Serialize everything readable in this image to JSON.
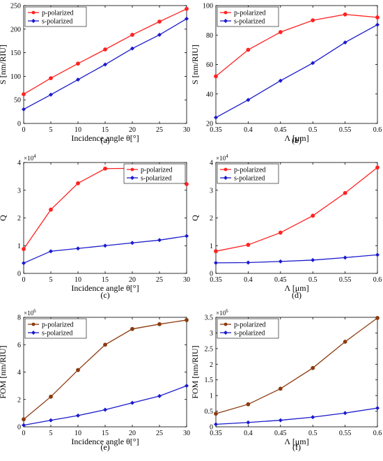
{
  "chart_data": [
    {
      "type": "line",
      "panel_label": "(a)",
      "x": [
        0,
        5,
        10,
        15,
        20,
        25,
        30
      ],
      "xlim": [
        0,
        30
      ],
      "xticks": [
        "0",
        "5",
        "10",
        "15",
        "20",
        "25",
        "30"
      ],
      "ylim": [
        0,
        250
      ],
      "yticks": [
        "0",
        "50",
        "100",
        "150",
        "200",
        "250"
      ],
      "multiplier": "",
      "xlabel": "Incidence angle θ[°]",
      "ylabel": "S [nm/RIU]",
      "legend_position": "top-left",
      "series": [
        {
          "name": "p-polarized",
          "color": "#ff2222",
          "marker": "circle",
          "values": [
            62,
            96,
            127,
            157,
            188,
            216,
            243
          ]
        },
        {
          "name": "s-polarized",
          "color": "#1a1acc",
          "marker": "diamond",
          "values": [
            30,
            61,
            93,
            125,
            159,
            188,
            222
          ]
        }
      ]
    },
    {
      "type": "line",
      "panel_label": "(b)",
      "x": [
        0.35,
        0.4,
        0.45,
        0.5,
        0.55,
        0.6
      ],
      "xlim": [
        0.35,
        0.6
      ],
      "xticks": [
        "0.35",
        "0.4",
        "0.45",
        "0.5",
        "0.55",
        "0.6"
      ],
      "ylim": [
        20,
        100
      ],
      "yticks": [
        "20",
        "40",
        "60",
        "80",
        "100"
      ],
      "multiplier": "",
      "xlabel": "Λ [μm]",
      "ylabel": "S [nm/RIU]",
      "legend_position": "top-left",
      "series": [
        {
          "name": "p-polarized",
          "color": "#ff2222",
          "marker": "circle",
          "values": [
            52,
            70,
            82,
            90,
            94,
            92
          ]
        },
        {
          "name": "s-polarized",
          "color": "#1a1acc",
          "marker": "diamond",
          "values": [
            24,
            36,
            49,
            61,
            75,
            87
          ]
        }
      ]
    },
    {
      "type": "line",
      "panel_label": "(c)",
      "x": [
        0,
        5,
        10,
        15,
        20,
        25,
        30
      ],
      "xlim": [
        0,
        30
      ],
      "xticks": [
        "0",
        "5",
        "10",
        "15",
        "20",
        "25",
        "30"
      ],
      "ylim": [
        0,
        4
      ],
      "yticks": [
        "0",
        "1",
        "2",
        "3",
        "4"
      ],
      "multiplier": "×10",
      "multiplier_exp": "4",
      "xlabel": "Incidence angle θ[°]",
      "ylabel": "Q",
      "legend_position": "top-right",
      "series": [
        {
          "name": "p-polarized",
          "color": "#ff2222",
          "marker": "circle",
          "values": [
            0.88,
            2.3,
            3.25,
            3.78,
            3.79,
            3.48,
            3.22
          ]
        },
        {
          "name": "s-polarized",
          "color": "#1a1acc",
          "marker": "diamond",
          "values": [
            0.37,
            0.8,
            0.9,
            1.0,
            1.1,
            1.2,
            1.35
          ]
        }
      ]
    },
    {
      "type": "line",
      "panel_label": "(d)",
      "x": [
        0.35,
        0.4,
        0.45,
        0.5,
        0.55,
        0.6
      ],
      "xlim": [
        0.35,
        0.6
      ],
      "xticks": [
        "0.35",
        "0.4",
        "0.45",
        "0.5",
        "0.55",
        "0.6"
      ],
      "ylim": [
        0,
        4
      ],
      "yticks": [
        "0",
        "1",
        "2",
        "3",
        "4"
      ],
      "multiplier": "×10",
      "multiplier_exp": "4",
      "xlabel": "Λ [μm]",
      "ylabel": "Q",
      "legend_position": "top-left",
      "series": [
        {
          "name": "p-polarized",
          "color": "#ff2222",
          "marker": "circle",
          "values": [
            0.8,
            1.03,
            1.47,
            2.08,
            2.9,
            3.82
          ]
        },
        {
          "name": "s-polarized",
          "color": "#1a1acc",
          "marker": "diamond",
          "values": [
            0.38,
            0.39,
            0.43,
            0.48,
            0.57,
            0.67
          ]
        }
      ]
    },
    {
      "type": "line",
      "panel_label": "(e)",
      "x": [
        0,
        5,
        10,
        15,
        20,
        25,
        30
      ],
      "xlim": [
        0,
        30
      ],
      "xticks": [
        "0",
        "5",
        "10",
        "15",
        "20",
        "25",
        "30"
      ],
      "ylim": [
        0,
        8
      ],
      "yticks": [
        "0",
        "2",
        "4",
        "6",
        "8"
      ],
      "multiplier": "×10",
      "multiplier_exp": "6",
      "xlabel": "Incidence angle θ[°]",
      "ylabel": "FOM [nm/RIU]",
      "legend_position": "top-left",
      "series": [
        {
          "name": "p-polarized",
          "color": "#8b3a0f",
          "marker": "circle",
          "values": [
            0.55,
            2.2,
            4.15,
            6.0,
            7.15,
            7.5,
            7.8
          ]
        },
        {
          "name": "s-polarized",
          "color": "#1a1acc",
          "marker": "diamond",
          "values": [
            0.12,
            0.48,
            0.82,
            1.25,
            1.75,
            2.25,
            3.0
          ]
        }
      ]
    },
    {
      "type": "line",
      "panel_label": "(f)",
      "x": [
        0.35,
        0.4,
        0.45,
        0.5,
        0.55,
        0.6
      ],
      "xlim": [
        0.35,
        0.6
      ],
      "xticks": [
        "0.35",
        "0.4",
        "0.45",
        "0.5",
        "0.55",
        "0.6"
      ],
      "ylim": [
        0,
        3.5
      ],
      "yticks": [
        "0",
        "0.5",
        "1",
        "1.5",
        "2",
        "2.5",
        "3",
        "3.5"
      ],
      "multiplier": "×10",
      "multiplier_exp": "6",
      "xlabel": "Λ [μm]",
      "ylabel": "FOM [nm/RIU]",
      "legend_position": "top-left",
      "series": [
        {
          "name": "p-polarized",
          "color": "#8b3a0f",
          "marker": "circle",
          "values": [
            0.42,
            0.72,
            1.22,
            1.88,
            2.72,
            3.48
          ]
        },
        {
          "name": "s-polarized",
          "color": "#1a1acc",
          "marker": "diamond",
          "values": [
            0.08,
            0.14,
            0.21,
            0.31,
            0.44,
            0.6
          ]
        }
      ]
    }
  ]
}
